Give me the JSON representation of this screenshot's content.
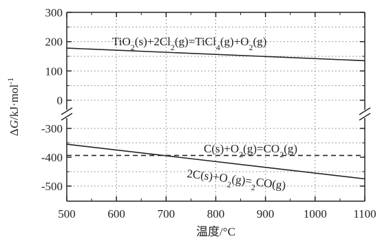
{
  "chart_data": {
    "type": "line",
    "xlabel": "温度/°C",
    "ylabel_parts": {
      "delta": "Δ",
      "var": "G",
      "unit": "/kJ·mol",
      "exp": "-1"
    },
    "xlim": [
      500,
      1100
    ],
    "x_ticks": [
      "500",
      "600",
      "700",
      "800",
      "900",
      "1000",
      "1100"
    ],
    "y_axis_break": true,
    "y_upper": {
      "range": [
        0,
        300
      ],
      "ticks": [
        "300",
        "200",
        "100",
        "0"
      ]
    },
    "y_lower": {
      "range": [
        -500,
        -300
      ],
      "ticks": [
        "-300",
        "-400",
        "-500"
      ]
    },
    "grid": true,
    "series": [
      {
        "x": [
          500,
          1100
        ],
        "y": [
          178,
          135
        ],
        "style": "solid",
        "label_parts": [
          {
            "t": "TiO"
          },
          {
            "t": "2",
            "sub": true
          },
          {
            "t": "(s)+2Cl"
          },
          {
            "t": "2",
            "sub": true
          },
          {
            "t": "(g)=TiCl"
          },
          {
            "t": "4",
            "sub": true
          },
          {
            "t": "(g)+O"
          },
          {
            "t": "2",
            "sub": true
          },
          {
            "t": "(g)"
          }
        ]
      },
      {
        "x": [
          500,
          1100
        ],
        "y": [
          -394,
          -394
        ],
        "style": "dashed",
        "label_parts": [
          {
            "t": "C(s)+O"
          },
          {
            "t": "2",
            "sub": true
          },
          {
            "t": "(g)=CO"
          },
          {
            "t": "2",
            "sub": true
          },
          {
            "t": "(g)"
          }
        ]
      },
      {
        "x": [
          500,
          1100
        ],
        "y": [
          -355,
          -475
        ],
        "style": "solid",
        "label_parts": [
          {
            "t": "2C(s)+O"
          },
          {
            "t": "2",
            "sub": true
          },
          {
            "t": "(g)="
          },
          {
            "t": "2",
            "sub": true
          },
          {
            "t": "CO(g)"
          }
        ]
      }
    ]
  }
}
